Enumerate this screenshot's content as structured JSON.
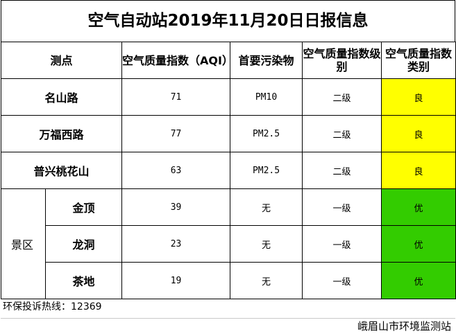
{
  "title": "空气自动站2019年11月20日日报信息",
  "headers": {
    "site": "测点",
    "aqi": "空气质量指数（AQI）",
    "pollutant": "首要污染物",
    "level": "空气质量指数级别",
    "category": "空气质量指数类别"
  },
  "rows": [
    {
      "name": "名山路",
      "aqi": "71",
      "pollutant": "PM10",
      "level": "二级",
      "category": "良",
      "color": "#ffff00"
    },
    {
      "name": "万福西路",
      "aqi": "77",
      "pollutant": "PM2.5",
      "level": "二级",
      "category": "良",
      "color": "#ffff00"
    },
    {
      "name": "普兴桃花山",
      "aqi": "63",
      "pollutant": "PM2.5",
      "level": "二级",
      "category": "良",
      "color": "#ffff00"
    }
  ],
  "scenic": {
    "group_label": "景区",
    "rows": [
      {
        "name": "金顶",
        "aqi": "39",
        "pollutant": "无",
        "level": "一级",
        "category": "优",
        "color": "#33cc00"
      },
      {
        "name": "龙洞",
        "aqi": "23",
        "pollutant": "无",
        "level": "一级",
        "category": "优",
        "color": "#33cc00"
      },
      {
        "name": "茶地",
        "aqi": "19",
        "pollutant": "无",
        "level": "一级",
        "category": "优",
        "color": "#33cc00"
      }
    ]
  },
  "footer": {
    "hotline": "环保投诉热线：12369",
    "issuer": "峨眉山市环境监测站"
  }
}
